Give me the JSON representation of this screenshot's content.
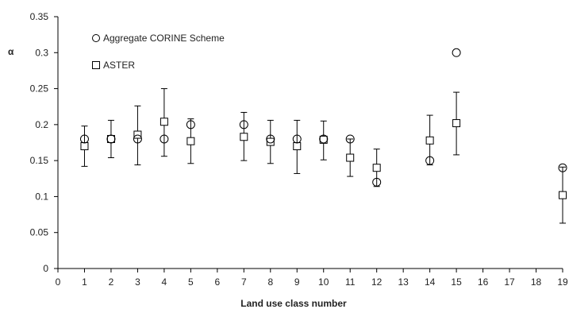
{
  "chart_data": {
    "type": "scatter",
    "xlabel": "Land use class number",
    "ylabel": "α",
    "xlim": [
      0,
      19
    ],
    "ylim": [
      0,
      0.35
    ],
    "x_ticks": [
      0,
      1,
      2,
      3,
      4,
      5,
      6,
      7,
      8,
      9,
      10,
      11,
      12,
      13,
      14,
      15,
      16,
      17,
      18,
      19
    ],
    "y_ticks": [
      0,
      0.05,
      0.1,
      0.15,
      0.2,
      0.25,
      0.3,
      0.35
    ],
    "y_tick_labels": [
      "0",
      "0.05",
      "0.1",
      "0.15",
      "0.2",
      "0.25",
      "0.3",
      "0.35"
    ],
    "grid": false,
    "legend_position": "top-left",
    "series": [
      {
        "name": "Aggregate CORINE Scheme",
        "marker": "circle",
        "x": [
          1,
          2,
          3,
          4,
          5,
          7,
          8,
          9,
          10,
          11,
          12,
          14,
          15,
          19
        ],
        "y": [
          0.18,
          0.18,
          0.18,
          0.18,
          0.2,
          0.2,
          0.18,
          0.18,
          0.18,
          0.18,
          0.12,
          0.15,
          0.3,
          0.14
        ]
      },
      {
        "name": "ASTER",
        "marker": "square",
        "x": [
          1,
          2,
          3,
          4,
          5,
          7,
          8,
          9,
          10,
          11,
          12,
          14,
          15,
          19
        ],
        "y": [
          0.17,
          0.18,
          0.186,
          0.204,
          0.177,
          0.183,
          0.176,
          0.17,
          0.179,
          0.154,
          0.14,
          0.178,
          0.202,
          0.102
        ],
        "err_low": [
          0.142,
          0.154,
          0.144,
          0.156,
          0.146,
          0.15,
          0.146,
          0.132,
          0.151,
          0.128,
          0.114,
          0.144,
          0.158,
          0.063
        ],
        "err_high": [
          0.198,
          0.206,
          0.226,
          0.25,
          0.208,
          0.217,
          0.206,
          0.206,
          0.205,
          0.18,
          0.166,
          0.213,
          0.245,
          0.141
        ]
      }
    ]
  }
}
